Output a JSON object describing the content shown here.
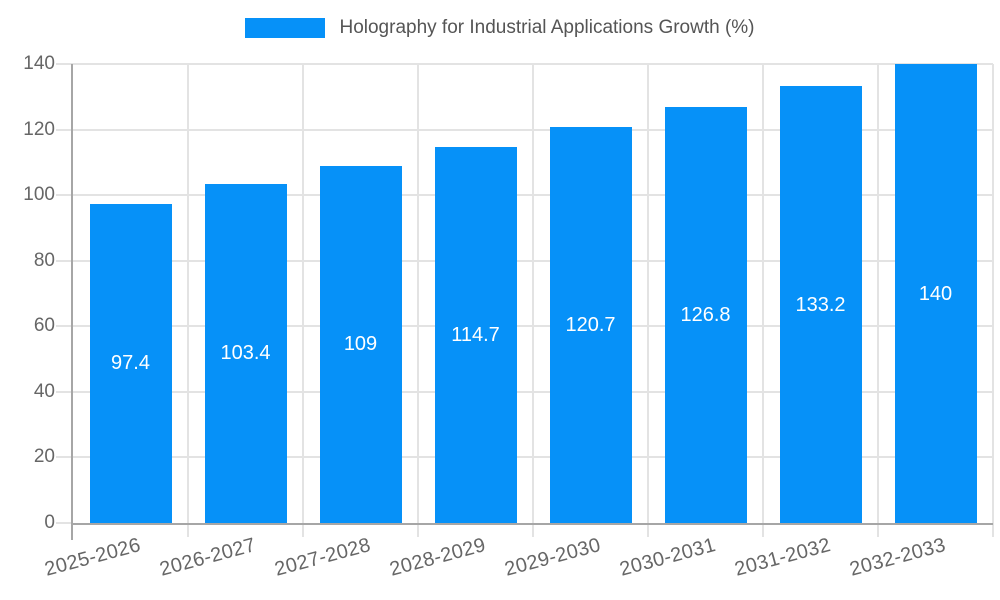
{
  "legend": {
    "label": "Holography for Industrial Applications Growth (%)"
  },
  "colors": {
    "bar": "#0691f8",
    "grid": "#e3e3e3",
    "axis": "#a6a6a6",
    "tick_label": "#666666",
    "legend_text": "#555555",
    "value_label": "#ffffff",
    "background": "#ffffff"
  },
  "chart_data": {
    "type": "bar",
    "title": "Holography for Industrial Applications Growth (%)",
    "categories": [
      "2025-2026",
      "2026-2027",
      "2027-2028",
      "2028-2029",
      "2029-2030",
      "2030-2031",
      "2031-2032",
      "2032-2033"
    ],
    "values": [
      97.4,
      103.4,
      109,
      114.7,
      120.7,
      126.8,
      133.2,
      140
    ],
    "value_labels": [
      "97.4",
      "103.4",
      "109",
      "114.7",
      "120.7",
      "126.8",
      "133.2",
      "140"
    ],
    "xlabel": "",
    "ylabel": "",
    "ylim": [
      0,
      140
    ],
    "yticks": [
      0,
      20,
      40,
      60,
      80,
      100,
      120,
      140
    ],
    "grid": true,
    "legend_position": "top"
  }
}
